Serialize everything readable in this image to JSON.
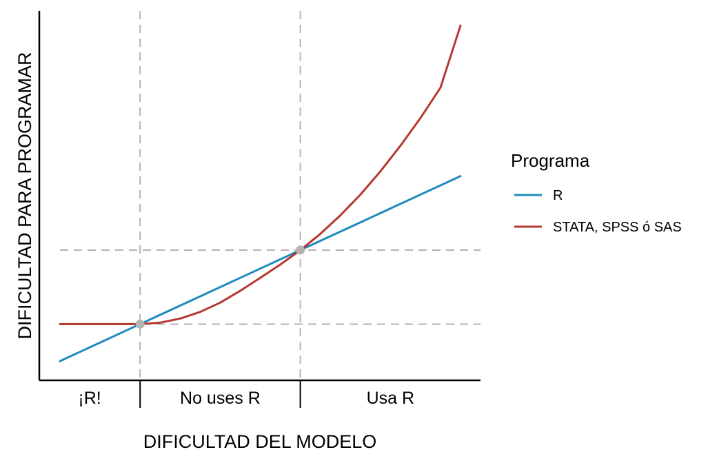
{
  "chart_data": {
    "type": "line",
    "title": "",
    "xlabel": "DIFICULTAD DEL MODELO",
    "ylabel": "DIFICULTAD PARA PROGRAMAR",
    "x_tick_labels": [],
    "y_tick_labels": [],
    "xlim": [
      0,
      1
    ],
    "ylim": [
      0,
      1
    ],
    "grid": false,
    "region_labels": [
      "¡R!",
      "No uses R",
      "Usa R"
    ],
    "region_boundaries_x": [
      0.2,
      0.6
    ],
    "reference_lines": {
      "vertical_x": [
        0.2,
        0.6
      ],
      "horizontal_y": [
        0.15,
        0.35
      ]
    },
    "intersection_points": [
      {
        "x": 0.2,
        "y": 0.15
      },
      {
        "x": 0.6,
        "y": 0.35
      }
    ],
    "legend": {
      "title": "Programa",
      "placement": "right"
    },
    "series": [
      {
        "name": "R",
        "color": "#1f8ac0",
        "x": [
          0.0,
          1.0
        ],
        "y": [
          0.05,
          0.55
        ]
      },
      {
        "name": "STATA, SPSS ó SAS",
        "color": "#b5392f",
        "x": [
          0.0,
          0.1,
          0.2,
          0.25,
          0.3,
          0.35,
          0.4,
          0.45,
          0.5,
          0.55,
          0.6,
          0.65,
          0.7,
          0.75,
          0.8,
          0.85,
          0.9,
          0.95,
          1.0
        ],
        "y": [
          0.15,
          0.15,
          0.15,
          0.154,
          0.165,
          0.183,
          0.208,
          0.24,
          0.275,
          0.311,
          0.35,
          0.394,
          0.444,
          0.5,
          0.563,
          0.632,
          0.707,
          0.789,
          0.957
        ]
      }
    ],
    "point_color": "#b3b3b3"
  }
}
